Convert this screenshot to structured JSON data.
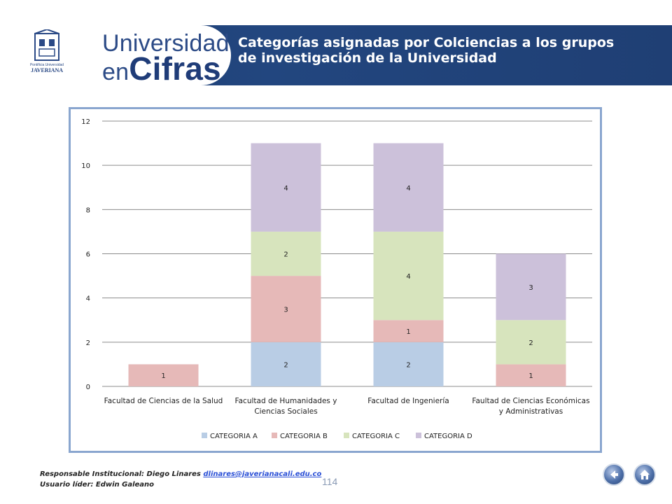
{
  "header": {
    "logo_brand_line1": "Pontificia Universidad",
    "logo_brand_line2": "JAVERIANA",
    "logo_word_line1": "Universidad",
    "logo_word_en": "en",
    "logo_word_cifras": "Cifras",
    "title": "Categorías asignadas por Colciencias a los grupos de investigación de la Universidad"
  },
  "chart_data": {
    "type": "bar",
    "stacked": true,
    "categories": [
      [
        "Facultad de Ciencias de la Salud"
      ],
      [
        "Facultad de Humanidades y",
        "Ciencias Sociales"
      ],
      [
        "Facultad de Ingeniería"
      ],
      [
        "Faultad de Ciencias Económicas",
        "y Administrativas"
      ]
    ],
    "series": [
      {
        "name": "CATEGORIA A",
        "color": "#b9cde5",
        "values": [
          0,
          2,
          2,
          0
        ]
      },
      {
        "name": "CATEGORIA B",
        "color": "#e6b9b8",
        "values": [
          1,
          3,
          1,
          1
        ]
      },
      {
        "name": "CATEGORIA C",
        "color": "#d7e4bd",
        "values": [
          0,
          2,
          4,
          2
        ]
      },
      {
        "name": "CATEGORIA D",
        "color": "#ccc1da",
        "values": [
          0,
          4,
          4,
          3
        ]
      }
    ],
    "ylim": [
      0,
      12
    ],
    "yticks": [
      "0",
      "2",
      "4",
      "6",
      "8",
      "10",
      "12"
    ],
    "grid": true,
    "legend": "bottom"
  },
  "footer": {
    "responsable_label": "Responsable Institucional: Diego Linares",
    "email": "dlinares@javerianacali.edu.co",
    "usuario": "Usuario líder: Edwin Galeano",
    "page_number": "114"
  },
  "nav": {
    "back_icon": "back-arrow-icon",
    "home_icon": "home-icon"
  }
}
